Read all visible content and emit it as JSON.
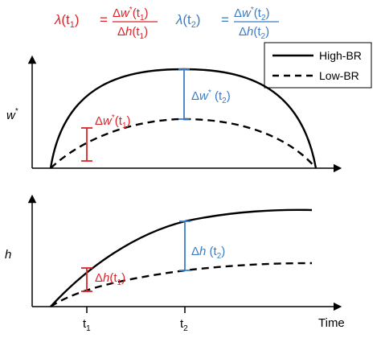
{
  "colors": {
    "red": "#d9262b",
    "blue": "#3b7dc4",
    "black": "#000000"
  },
  "header": {
    "formula1": {
      "lambda": "λ",
      "arg": "(t",
      "argsub": "1",
      "argend": ")",
      "equals": "=",
      "num_delta": "Δ",
      "num_var": "w",
      "num_sup": "*",
      "num_arg": "(t",
      "num_sub": "1",
      "num_end": ")",
      "den_delta": "Δ",
      "den_var": "h",
      "den_arg": "(t",
      "den_sub": "1",
      "den_end": ")"
    },
    "formula2": {
      "lambda": "λ",
      "arg": "(t",
      "argsub": "2",
      "argend": ")",
      "equals": "=",
      "num_delta": "Δ",
      "num_var": "w",
      "num_sup": "*",
      "num_arg": "(t",
      "num_sub": "2",
      "num_end": ")",
      "den_delta": "Δ",
      "den_var": "h",
      "den_arg": "(t",
      "den_sub": "2",
      "den_end": ")"
    }
  },
  "legend": {
    "high": "High-BR",
    "low": "Low-BR"
  },
  "top_panel": {
    "ylabel_var": "w",
    "ylabel_sup": "*",
    "ann1": {
      "delta": "Δ",
      "var": "w",
      "sup": "*",
      "arg": "(t",
      "sub": "1",
      "end": ")"
    },
    "ann2": {
      "delta": "Δ",
      "var": "w",
      "sup": "*",
      "arg": " (t",
      "sub": "2",
      "end": ")"
    }
  },
  "bottom_panel": {
    "ylabel_var": "h",
    "ann1": {
      "delta": "Δ",
      "var": "h",
      "arg": "(t",
      "sub": "1",
      "end": ")"
    },
    "ann2": {
      "delta": "Δ",
      "var": "h",
      "arg": " (t",
      "sub": "2",
      "end": ")"
    }
  },
  "xaxis": {
    "t1": "t",
    "t1sub": "1",
    "t2": "t",
    "t2sub": "2",
    "label": "Time"
  }
}
